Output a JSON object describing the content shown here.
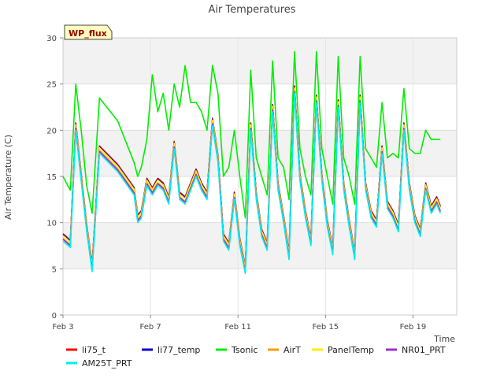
{
  "chart_data": {
    "type": "line",
    "title": "Air Temperatures",
    "xlabel": "Time",
    "ylabel": "Air Temperature (C)",
    "badge": "WP_flux",
    "ylim": [
      0,
      30
    ],
    "yticks": [
      0,
      5,
      10,
      15,
      20,
      25,
      30
    ],
    "xlim": [
      "2023-02-03",
      "2023-02-21"
    ],
    "xticks": [
      {
        "date": "2023-02-03",
        "label": "Feb 3"
      },
      {
        "date": "2023-02-07",
        "label": "Feb 7"
      },
      {
        "date": "2023-02-11",
        "label": "Feb 11"
      },
      {
        "date": "2023-02-15",
        "label": "Feb 15"
      },
      {
        "date": "2023-02-19",
        "label": "Feb 19"
      }
    ],
    "grid": true,
    "background_bands": true,
    "legend_position": "bottom",
    "series": [
      {
        "name": "li75_t",
        "color": "#ff0000",
        "offset": 0.3
      },
      {
        "name": "li77_temp",
        "color": "#0000cc",
        "offset": 0.2
      },
      {
        "name": "Tsonic",
        "color": "#00ee00",
        "offset": 0
      },
      {
        "name": "AirT",
        "color": "#ff9900",
        "offset": -0.2
      },
      {
        "name": "PanelTemp",
        "color": "#ffee00",
        "offset": 0.1
      },
      {
        "name": "NR01_PRT",
        "color": "#9933cc",
        "offset": -0.3
      },
      {
        "name": "AM25T_PRT",
        "color": "#00eeee",
        "offset": -0.5
      }
    ],
    "base_points": [
      [
        "2023-02-03T00:00",
        8.5
      ],
      [
        "2023-02-03T08:00",
        7.8
      ],
      [
        "2023-02-03T14:00",
        20.5
      ],
      [
        "2023-02-03T20:00",
        15
      ],
      [
        "2023-02-04T02:00",
        9.5
      ],
      [
        "2023-02-04T08:00",
        5.2
      ],
      [
        "2023-02-04T16:00",
        18
      ],
      [
        "2023-02-05T12:00",
        16
      ],
      [
        "2023-02-06T06:00",
        13.5
      ],
      [
        "2023-02-06T10:00",
        10.5
      ],
      [
        "2023-02-06T14:00",
        11
      ],
      [
        "2023-02-06T20:00",
        14.5
      ],
      [
        "2023-02-07T02:00",
        13.5
      ],
      [
        "2023-02-07T08:00",
        14.5
      ],
      [
        "2023-02-07T14:00",
        14
      ],
      [
        "2023-02-07T20:00",
        12.5
      ],
      [
        "2023-02-08T02:00",
        18.5
      ],
      [
        "2023-02-08T08:00",
        13
      ],
      [
        "2023-02-08T14:00",
        12.5
      ],
      [
        "2023-02-08T20:00",
        14
      ],
      [
        "2023-02-09T02:00",
        15.5
      ],
      [
        "2023-02-09T08:00",
        14
      ],
      [
        "2023-02-09T14:00",
        13
      ],
      [
        "2023-02-09T20:00",
        21
      ],
      [
        "2023-02-10T02:00",
        17
      ],
      [
        "2023-02-10T08:00",
        8.5
      ],
      [
        "2023-02-10T14:00",
        7.5
      ],
      [
        "2023-02-10T20:00",
        13
      ],
      [
        "2023-02-11T02:00",
        8
      ],
      [
        "2023-02-11T08:00",
        5
      ],
      [
        "2023-02-11T14:00",
        20.5
      ],
      [
        "2023-02-11T20:00",
        13
      ],
      [
        "2023-02-12T02:00",
        9
      ],
      [
        "2023-02-12T08:00",
        7.5
      ],
      [
        "2023-02-12T14:00",
        22.5
      ],
      [
        "2023-02-12T20:00",
        14
      ],
      [
        "2023-02-13T02:00",
        10.5
      ],
      [
        "2023-02-13T08:00",
        6.5
      ],
      [
        "2023-02-13T14:00",
        24.5
      ],
      [
        "2023-02-13T20:00",
        15
      ],
      [
        "2023-02-14T02:00",
        11
      ],
      [
        "2023-02-14T08:00",
        8
      ],
      [
        "2023-02-14T14:00",
        23.5
      ],
      [
        "2023-02-14T20:00",
        15
      ],
      [
        "2023-02-15T02:00",
        10
      ],
      [
        "2023-02-15T08:00",
        7
      ],
      [
        "2023-02-15T14:00",
        23
      ],
      [
        "2023-02-15T20:00",
        14
      ],
      [
        "2023-02-16T02:00",
        10
      ],
      [
        "2023-02-16T08:00",
        6.5
      ],
      [
        "2023-02-16T14:00",
        23.5
      ],
      [
        "2023-02-16T20:00",
        14
      ],
      [
        "2023-02-17T02:00",
        11
      ],
      [
        "2023-02-17T08:00",
        10
      ],
      [
        "2023-02-17T14:00",
        18
      ],
      [
        "2023-02-17T20:00",
        12
      ],
      [
        "2023-02-18T02:00",
        11
      ],
      [
        "2023-02-18T08:00",
        9.5
      ],
      [
        "2023-02-18T14:00",
        20.5
      ],
      [
        "2023-02-18T20:00",
        14
      ],
      [
        "2023-02-19T02:00",
        10.5
      ],
      [
        "2023-02-19T08:00",
        9
      ],
      [
        "2023-02-19T14:00",
        14
      ],
      [
        "2023-02-19T20:00",
        11.5
      ],
      [
        "2023-02-20T02:00",
        12.5
      ],
      [
        "2023-02-20T06:00",
        11.5
      ]
    ],
    "tsonic_points": [
      [
        "2023-02-03T00:00",
        15
      ],
      [
        "2023-02-03T08:00",
        13.5
      ],
      [
        "2023-02-03T14:00",
        25
      ],
      [
        "2023-02-03T20:00",
        20
      ],
      [
        "2023-02-04T02:00",
        14
      ],
      [
        "2023-02-04T08:00",
        11
      ],
      [
        "2023-02-04T16:00",
        23.5
      ],
      [
        "2023-02-05T12:00",
        21
      ],
      [
        "2023-02-06T06:00",
        16.5
      ],
      [
        "2023-02-06T10:00",
        15
      ],
      [
        "2023-02-06T14:00",
        16
      ],
      [
        "2023-02-06T20:00",
        19
      ],
      [
        "2023-02-07T02:00",
        26
      ],
      [
        "2023-02-07T08:00",
        22
      ],
      [
        "2023-02-07T14:00",
        24
      ],
      [
        "2023-02-07T20:00",
        20
      ],
      [
        "2023-02-08T02:00",
        25
      ],
      [
        "2023-02-08T08:00",
        22.5
      ],
      [
        "2023-02-08T14:00",
        27
      ],
      [
        "2023-02-08T20:00",
        23
      ],
      [
        "2023-02-09T02:00",
        23
      ],
      [
        "2023-02-09T08:00",
        22
      ],
      [
        "2023-02-09T14:00",
        20
      ],
      [
        "2023-02-09T20:00",
        27
      ],
      [
        "2023-02-10T02:00",
        24
      ],
      [
        "2023-02-10T08:00",
        15
      ],
      [
        "2023-02-10T14:00",
        16
      ],
      [
        "2023-02-10T20:00",
        20
      ],
      [
        "2023-02-11T02:00",
        15
      ],
      [
        "2023-02-11T08:00",
        10.5
      ],
      [
        "2023-02-11T14:00",
        26.5
      ],
      [
        "2023-02-11T20:00",
        17
      ],
      [
        "2023-02-12T02:00",
        15
      ],
      [
        "2023-02-12T08:00",
        13
      ],
      [
        "2023-02-12T14:00",
        27.5
      ],
      [
        "2023-02-12T20:00",
        17
      ],
      [
        "2023-02-13T02:00",
        16
      ],
      [
        "2023-02-13T08:00",
        12.5
      ],
      [
        "2023-02-13T14:00",
        28.5
      ],
      [
        "2023-02-13T20:00",
        18
      ],
      [
        "2023-02-14T02:00",
        15
      ],
      [
        "2023-02-14T08:00",
        13
      ],
      [
        "2023-02-14T14:00",
        28.5
      ],
      [
        "2023-02-14T20:00",
        18
      ],
      [
        "2023-02-15T02:00",
        15
      ],
      [
        "2023-02-15T08:00",
        12
      ],
      [
        "2023-02-15T14:00",
        28
      ],
      [
        "2023-02-15T20:00",
        17
      ],
      [
        "2023-02-16T02:00",
        15
      ],
      [
        "2023-02-16T08:00",
        12
      ],
      [
        "2023-02-16T14:00",
        28
      ],
      [
        "2023-02-16T20:00",
        18
      ],
      [
        "2023-02-17T02:00",
        17
      ],
      [
        "2023-02-17T08:00",
        16
      ],
      [
        "2023-02-17T14:00",
        23
      ],
      [
        "2023-02-17T20:00",
        17
      ],
      [
        "2023-02-18T02:00",
        17.5
      ],
      [
        "2023-02-18T08:00",
        17
      ],
      [
        "2023-02-18T14:00",
        24.5
      ],
      [
        "2023-02-18T20:00",
        18
      ],
      [
        "2023-02-19T02:00",
        17.5
      ],
      [
        "2023-02-19T08:00",
        17.5
      ],
      [
        "2023-02-19T14:00",
        20
      ],
      [
        "2023-02-19T20:00",
        19
      ],
      [
        "2023-02-20T02:00",
        19
      ],
      [
        "2023-02-20T06:00",
        19
      ]
    ]
  }
}
